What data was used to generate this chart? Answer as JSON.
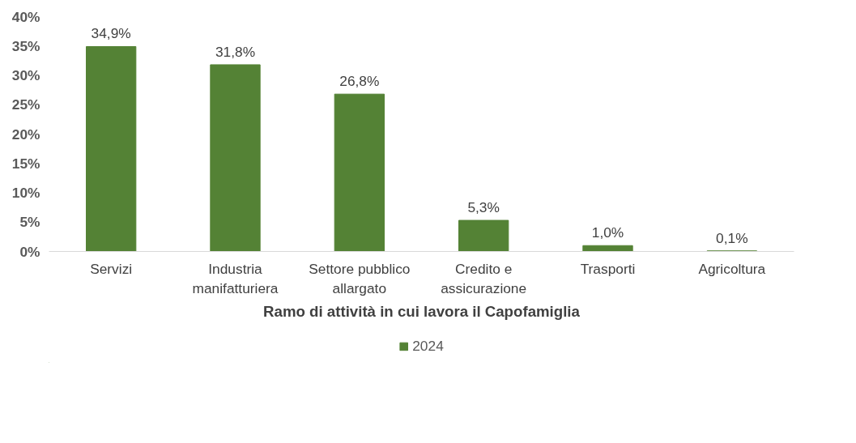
{
  "chart_data": {
    "type": "bar",
    "xlabel": "Ramo di attività in cui lavora il Capofamiglia",
    "categories": [
      "Servizi",
      "Industria manifatturiera",
      "Settore pubblico allargato",
      "Credito e assicurazione",
      "Trasporti",
      "Agricoltura"
    ],
    "series": [
      {
        "name": "2024",
        "color": "#548235",
        "values": [
          34.9,
          31.8,
          26.8,
          5.3,
          1.0,
          0.1
        ],
        "value_labels": [
          "34,9%",
          "31,8%",
          "26,8%",
          "5,3%",
          "1,0%",
          "0,1%"
        ]
      }
    ],
    "ylim": [
      0,
      40
    ],
    "yticks": [
      {
        "value": 0,
        "label": "0%"
      },
      {
        "value": 5,
        "label": "5%"
      },
      {
        "value": 10,
        "label": "10%"
      },
      {
        "value": 15,
        "label": "15%"
      },
      {
        "value": 20,
        "label": "20%"
      },
      {
        "value": 25,
        "label": "25%"
      },
      {
        "value": 30,
        "label": "30%"
      },
      {
        "value": 35,
        "label": "35%"
      },
      {
        "value": 40,
        "label": "40%"
      }
    ],
    "grid": false,
    "legend": "bottom"
  }
}
